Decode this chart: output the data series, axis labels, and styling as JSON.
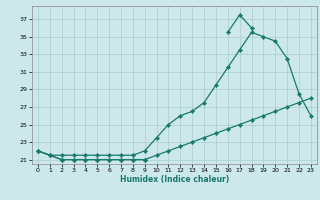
{
  "xlabel": "Humidex (Indice chaleur)",
  "x_all": [
    0,
    1,
    2,
    3,
    4,
    5,
    6,
    7,
    8,
    9,
    10,
    11,
    12,
    13,
    14,
    15,
    16,
    17,
    18,
    19,
    20,
    21,
    22,
    23
  ],
  "line_high": [
    null,
    null,
    null,
    null,
    null,
    null,
    null,
    null,
    null,
    null,
    null,
    null,
    null,
    null,
    null,
    null,
    35.5,
    37.5,
    36.0,
    null,
    null,
    null,
    null,
    null
  ],
  "line_mid": [
    22.0,
    21.5,
    21.5,
    21.5,
    21.5,
    21.5,
    21.5,
    21.5,
    21.5,
    22.0,
    23.5,
    25.0,
    26.0,
    26.5,
    27.5,
    29.5,
    31.5,
    33.5,
    35.5,
    35.0,
    34.5,
    32.5,
    28.5,
    26.0
  ],
  "line_low": [
    22.0,
    21.5,
    21.0,
    21.0,
    21.0,
    21.0,
    21.0,
    21.0,
    21.0,
    21.0,
    21.5,
    22.0,
    22.5,
    23.0,
    23.5,
    24.0,
    24.5,
    25.0,
    25.5,
    26.0,
    26.5,
    27.0,
    27.5,
    28.0
  ],
  "line_flat": [
    22.0,
    21.5,
    21.0,
    21.0,
    21.0,
    21.0,
    21.0,
    21.0,
    21.0,
    21.0,
    null,
    null,
    null,
    null,
    null,
    null,
    null,
    null,
    null,
    null,
    null,
    null,
    null,
    null
  ],
  "line_color": "#1a7a6e",
  "bg_color": "#cce8ea",
  "grid_color": "#aacccc",
  "ylim": [
    20.5,
    38.5
  ],
  "xlim": [
    -0.5,
    23.5
  ],
  "yticks": [
    21,
    23,
    25,
    27,
    29,
    31,
    33,
    35,
    37
  ],
  "xticks": [
    0,
    1,
    2,
    3,
    4,
    5,
    6,
    7,
    8,
    9,
    10,
    11,
    12,
    13,
    14,
    15,
    16,
    17,
    18,
    19,
    20,
    21,
    22,
    23
  ]
}
